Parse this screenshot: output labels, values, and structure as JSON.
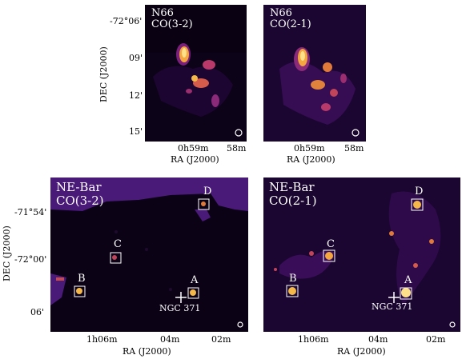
{
  "panels": {
    "n66_co32": {
      "title": "N66",
      "subtitle": "CO(3-2)"
    },
    "n66_co21": {
      "title": "N66",
      "subtitle": "CO(2-1)"
    },
    "nebar_co32": {
      "title": "NE-Bar",
      "subtitle": "CO(3-2)"
    },
    "nebar_co21": {
      "title": "NE-Bar",
      "subtitle": "CO(2-1)"
    }
  },
  "axes": {
    "dec_label": "DEC (J2000)",
    "ra_label": "RA (J2000)",
    "top_dec_ticks": [
      "-72°06'",
      "09'",
      "12'",
      "15'"
    ],
    "top_ra_ticks": [
      "0h59m",
      "58m"
    ],
    "bottom_dec_ticks": [
      "-71°54'",
      "-72°00'",
      "06'"
    ],
    "bottom_ra_ticks": [
      "1h06m",
      "04m",
      "02m"
    ]
  },
  "sources": [
    "A",
    "B",
    "C",
    "D"
  ],
  "cluster_label": "NGC 371",
  "colors": {
    "background": "#0b0216",
    "mask": "#4a1a78",
    "emission": "#f4b84a"
  }
}
